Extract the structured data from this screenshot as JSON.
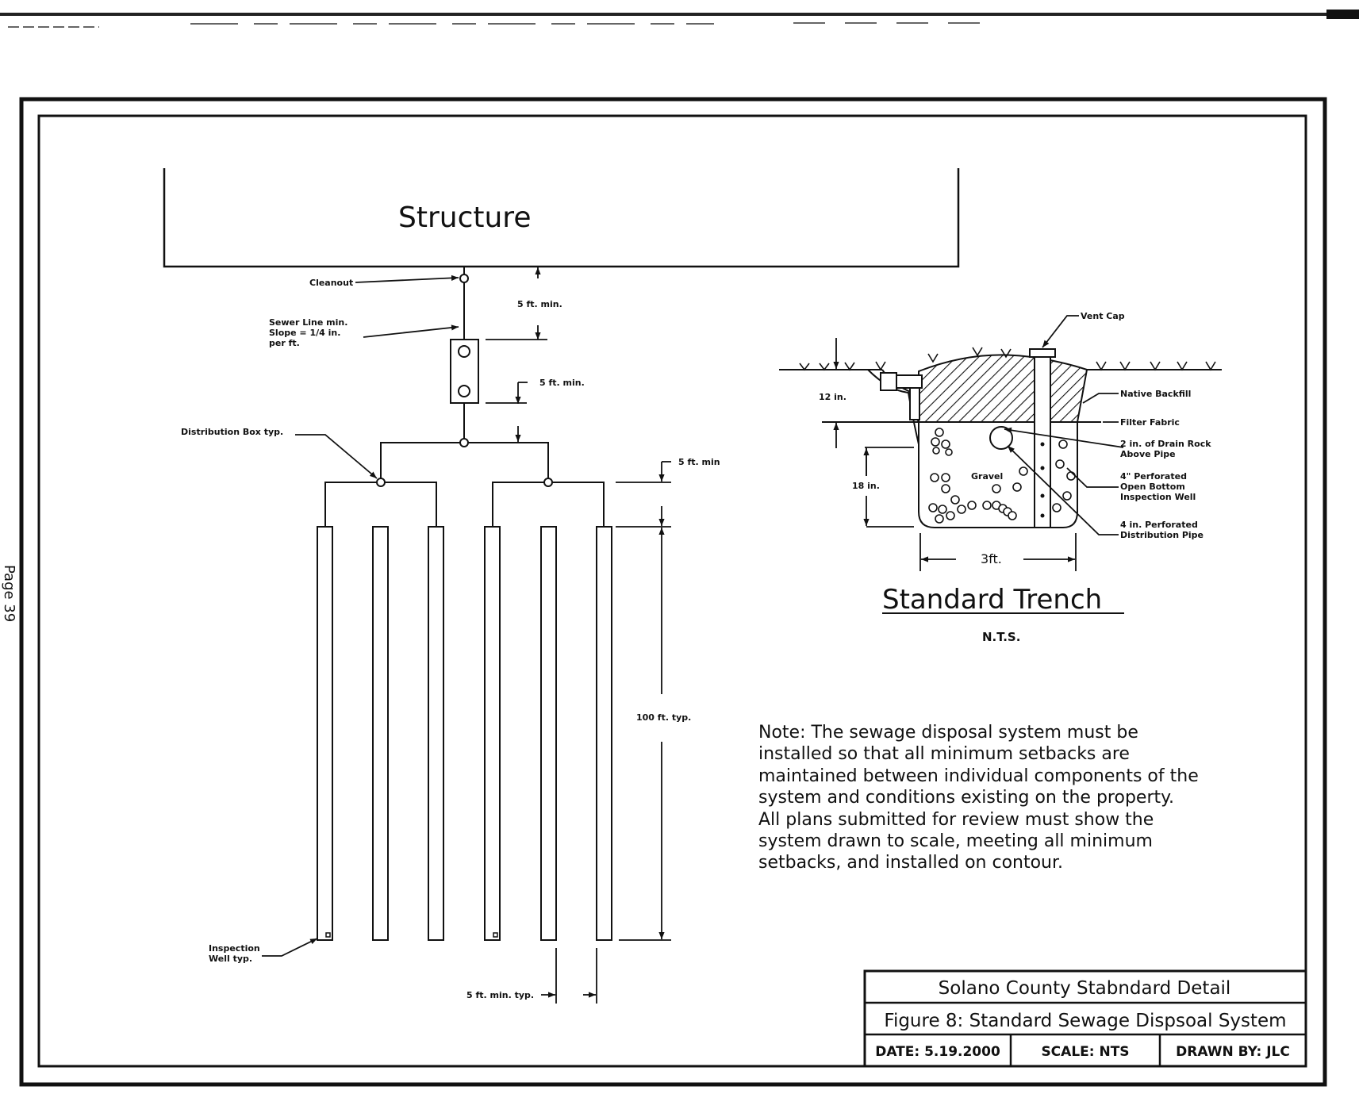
{
  "page_label": "Page 39",
  "structure": {
    "title": "Structure"
  },
  "labels": {
    "cleanout": "Cleanout",
    "sewer_line": [
      "Sewer Line min.",
      "Slope = 1/4 in.",
      "per ft."
    ],
    "setback_structure": "5 ft. min.",
    "setback_tank": "5 ft. min.",
    "distribution_box": "Distribution Box typ.",
    "setback_trench_head": "5 ft. min",
    "trench_length": "100 ft. typ.",
    "inspection_well": [
      "Inspection",
      "Well typ."
    ],
    "trench_spacing": "5 ft. min. typ."
  },
  "trench_detail": {
    "title": "Standard Trench",
    "scale": "N.T.S.",
    "depth_top": "12 in.",
    "depth_gravel": "18 in.",
    "width": "3ft.",
    "gravel": "Gravel",
    "callouts": {
      "vent_cap": "Vent Cap",
      "native_backfill": "Native Backfill",
      "filter_fabric": "Filter Fabric",
      "drain_rock": [
        "2 in. of Drain Rock",
        "Above Pipe"
      ],
      "inspection_well": [
        "4\" Perforated",
        "Open Bottom",
        "Inspection Well"
      ],
      "distribution_pipe": [
        "4 in. Perforated",
        "Distribution Pipe"
      ]
    }
  },
  "note_lines": [
    "Note: The sewage disposal system must be",
    "installed so that all minimum setbacks are",
    "maintained between individual components of the",
    "system and conditions existing on the property.",
    "All plans submitted for review must show the",
    "system drawn to scale, meeting all minimum",
    "setbacks, and installed on contour."
  ],
  "title_block": {
    "line1": "Solano County Stabndard Detail",
    "line2": "Figure 8: Standard Sewage Dispsoal System",
    "date": "DATE: 5.19.2000",
    "scale": "SCALE: NTS",
    "drawn_by": "DRAWN BY: JLC"
  }
}
